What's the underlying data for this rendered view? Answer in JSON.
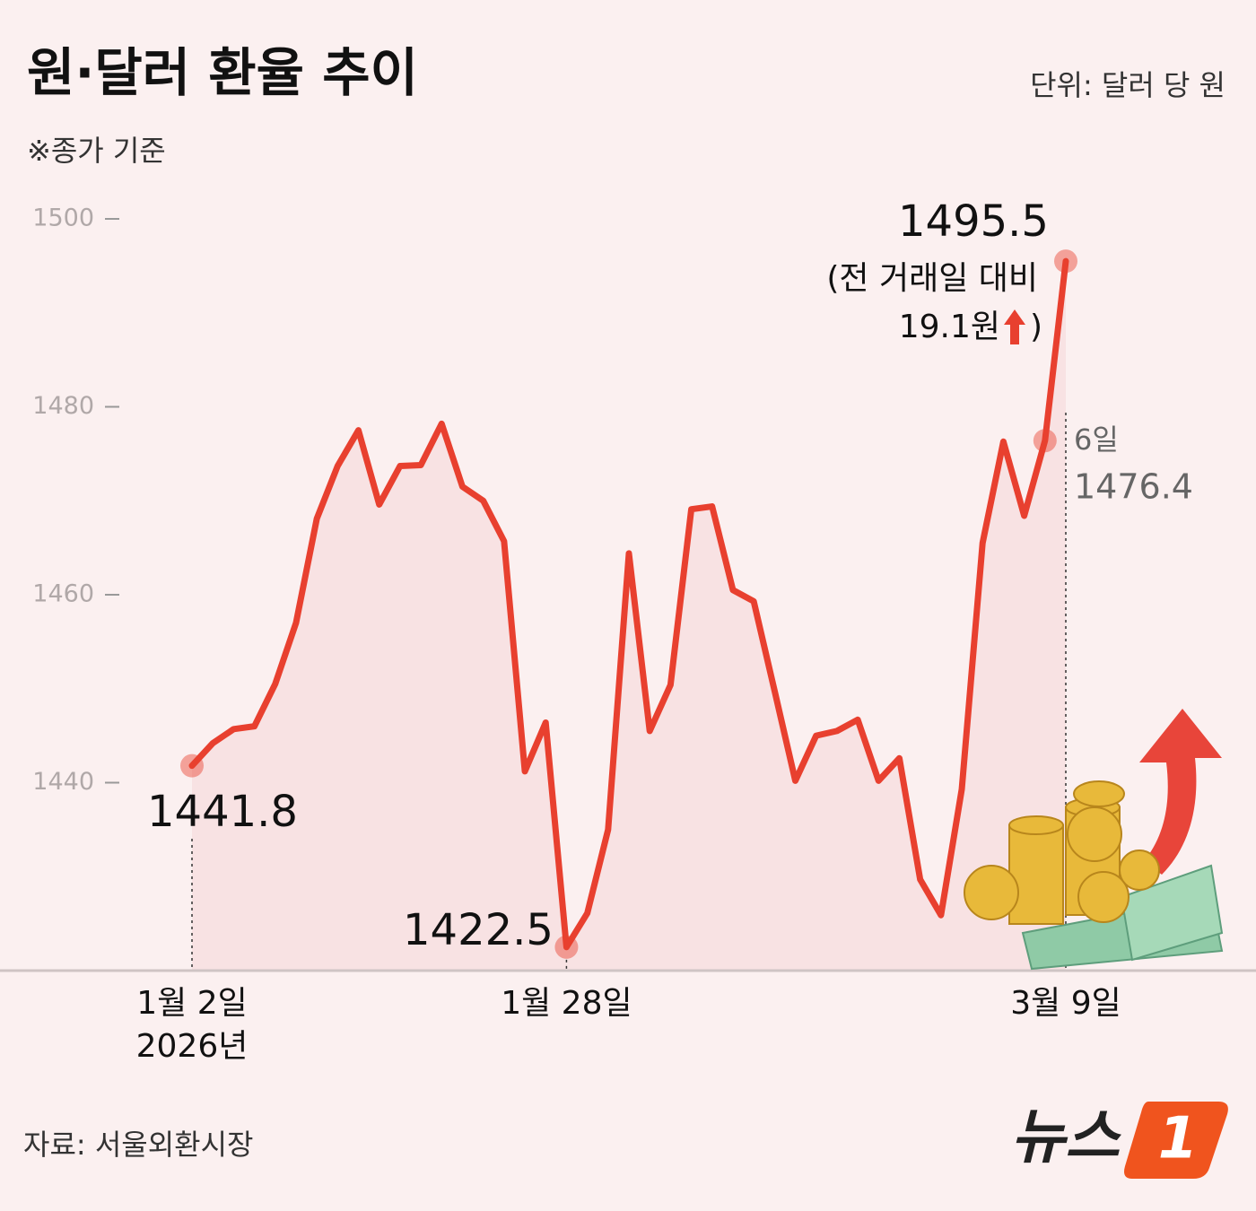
{
  "chart_data": {
    "type": "line",
    "title": "원·달러 환율 추이",
    "unit": "단위: 달러 당 원",
    "note": "※종가 기준",
    "source": "자료: 서울외환시장",
    "categories": [
      "1월 2일",
      null,
      null,
      null,
      null,
      null,
      null,
      null,
      null,
      null,
      null,
      null,
      null,
      null,
      null,
      null,
      null,
      null,
      "1월 28일",
      null,
      null,
      null,
      null,
      null,
      null,
      null,
      null,
      null,
      null,
      null,
      null,
      null,
      null,
      null,
      null,
      null,
      null,
      null,
      null,
      null,
      null,
      null,
      "3월 9일"
    ],
    "year_label": "2026년",
    "values": [
      1441.8,
      1444.2,
      1445.7,
      1446.0,
      1450.5,
      1457.0,
      1468.1,
      1473.7,
      1477.5,
      1469.6,
      1473.7,
      1473.8,
      1478.2,
      1471.5,
      1470.0,
      1465.7,
      1441.2,
      1446.4,
      1422.5,
      1426.1,
      1435.0,
      1464.4,
      1445.5,
      1450.4,
      1469.1,
      1469.4,
      1460.5,
      1459.3,
      1449.8,
      1440.2,
      1445.0,
      1445.5,
      1446.7,
      1440.2,
      1442.6,
      1429.7,
      1425.9,
      1439.3,
      1465.5,
      1476.3,
      1468.4,
      1476.4,
      1495.5
    ],
    "color": "#e8402f",
    "highlight_points": [
      0,
      18,
      41,
      42
    ],
    "ylim": [
      1420,
      1500
    ],
    "yticks": [
      1440,
      1460,
      1480,
      1500
    ],
    "annotations": {
      "prev_day": "6일",
      "change_prefix": "(전 거래일 대비",
      "change_value": "19.1원",
      "change_suffix": ")"
    },
    "logo": {
      "text": "뉴스",
      "badge": "1"
    }
  }
}
